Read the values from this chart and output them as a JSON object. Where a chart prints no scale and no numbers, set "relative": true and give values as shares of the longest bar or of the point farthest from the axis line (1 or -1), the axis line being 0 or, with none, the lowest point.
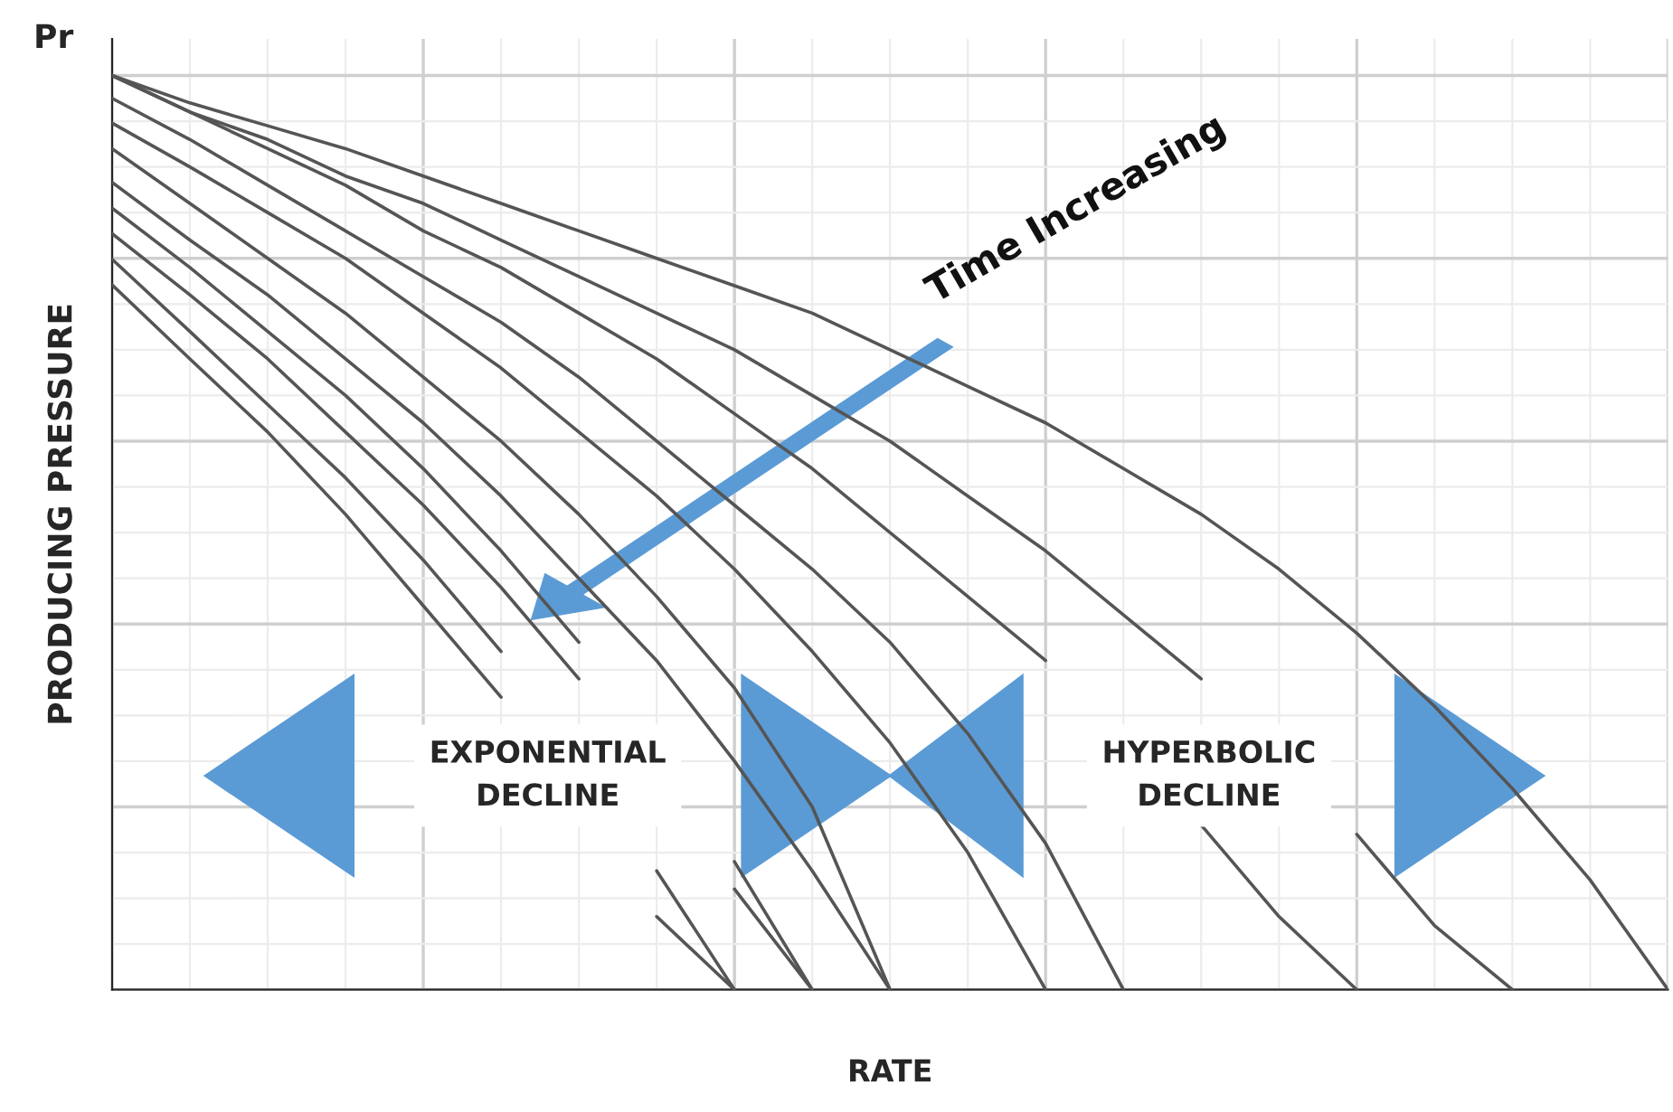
{
  "chart_data": {
    "type": "line",
    "relative": true,
    "xlabel": "RATE",
    "ylabel": "PRODUCING PRESSURE",
    "grid": true,
    "marker": "none",
    "line_style": "solid",
    "annotations": [
      "Pr",
      "Time Increasing",
      "EXPONENTIAL\nDECLINE",
      "HYPERBOLIC\nDECLINE"
    ],
    "categories": [
      null,
      null,
      null,
      null,
      null,
      null,
      null,
      null,
      null,
      null,
      null,
      null,
      null,
      null,
      null,
      null,
      null,
      null,
      null,
      null,
      null
    ],
    "series": [
      {
        "color": "#555555",
        "values": [
          1.0,
          0.97,
          0.945,
          0.92,
          0.89,
          0.86,
          0.83,
          0.8,
          0.77,
          0.74,
          0.7,
          0.66,
          0.62,
          0.57,
          0.52,
          0.46,
          0.39,
          0.31,
          0.22,
          0.12,
          0
        ]
      },
      {
        "color": "#555555",
        "values": [
          1.0,
          0.96,
          0.93,
          0.89,
          0.86,
          0.82,
          0.78,
          0.74,
          0.7,
          0.65,
          0.6,
          0.54,
          0.48,
          0.41,
          0.34,
          null,
          0.17,
          0.07,
          0,
          null,
          null
        ]
      },
      {
        "color": "#555555",
        "values": [
          1.0,
          0.96,
          0.92,
          0.88,
          0.83,
          0.79,
          0.74,
          0.69,
          0.63,
          0.57,
          0.5,
          0.43,
          0.36,
          null,
          0.18,
          0.08,
          0,
          null,
          null,
          null,
          null
        ]
      },
      {
        "color": "#555555",
        "values": [
          0.975,
          0.93,
          0.88,
          0.83,
          0.78,
          0.73,
          0.67,
          0.6,
          0.53,
          0.46,
          0.38,
          0.28,
          0.16,
          0,
          null,
          null,
          null,
          null,
          null,
          null,
          null
        ]
      },
      {
        "color": "#555555",
        "values": [
          0.948,
          0.9,
          0.85,
          0.8,
          0.74,
          0.68,
          0.61,
          0.54,
          0.46,
          0.37,
          0.27,
          0.15,
          0,
          null,
          null,
          null,
          null,
          null,
          null,
          null,
          null
        ]
      },
      {
        "color": "#555555",
        "values": [
          0.92,
          0.86,
          0.8,
          0.74,
          0.67,
          0.6,
          0.52,
          0.43,
          0.33,
          0.2,
          0,
          null,
          null,
          null,
          null,
          null,
          null,
          null,
          null,
          null,
          null
        ]
      },
      {
        "color": "#555555",
        "values": [
          0.883,
          0.82,
          0.76,
          0.69,
          0.62,
          0.54,
          0.45,
          0.36,
          0.25,
          0.13,
          0,
          null,
          null,
          null,
          null,
          null,
          null,
          null,
          null,
          null,
          null
        ]
      },
      {
        "color": "#555555",
        "values": [
          0.855,
          0.79,
          0.72,
          0.65,
          0.57,
          0.48,
          0.38,
          null,
          0.14,
          0,
          null,
          null,
          null,
          null,
          null,
          null,
          null,
          null,
          null,
          null,
          null
        ]
      },
      {
        "color": "#555555",
        "values": [
          0.827,
          0.76,
          0.69,
          0.61,
          0.53,
          0.44,
          0.34,
          null,
          0.11,
          0,
          null,
          null,
          null,
          null,
          null,
          null,
          null,
          null,
          null,
          null,
          null
        ]
      },
      {
        "color": "#555555",
        "values": [
          0.799,
          0.72,
          0.64,
          0.56,
          0.47,
          0.37,
          null,
          0.13,
          0,
          null,
          null,
          null,
          null,
          null,
          null,
          null,
          null,
          null,
          null,
          null,
          null
        ]
      },
      {
        "color": "#555555",
        "values": [
          0.771,
          0.69,
          0.61,
          0.52,
          0.42,
          0.32,
          null,
          0.08,
          0,
          null,
          null,
          null,
          null,
          null,
          null,
          null,
          null,
          null,
          null,
          null,
          null
        ]
      }
    ]
  }
}
